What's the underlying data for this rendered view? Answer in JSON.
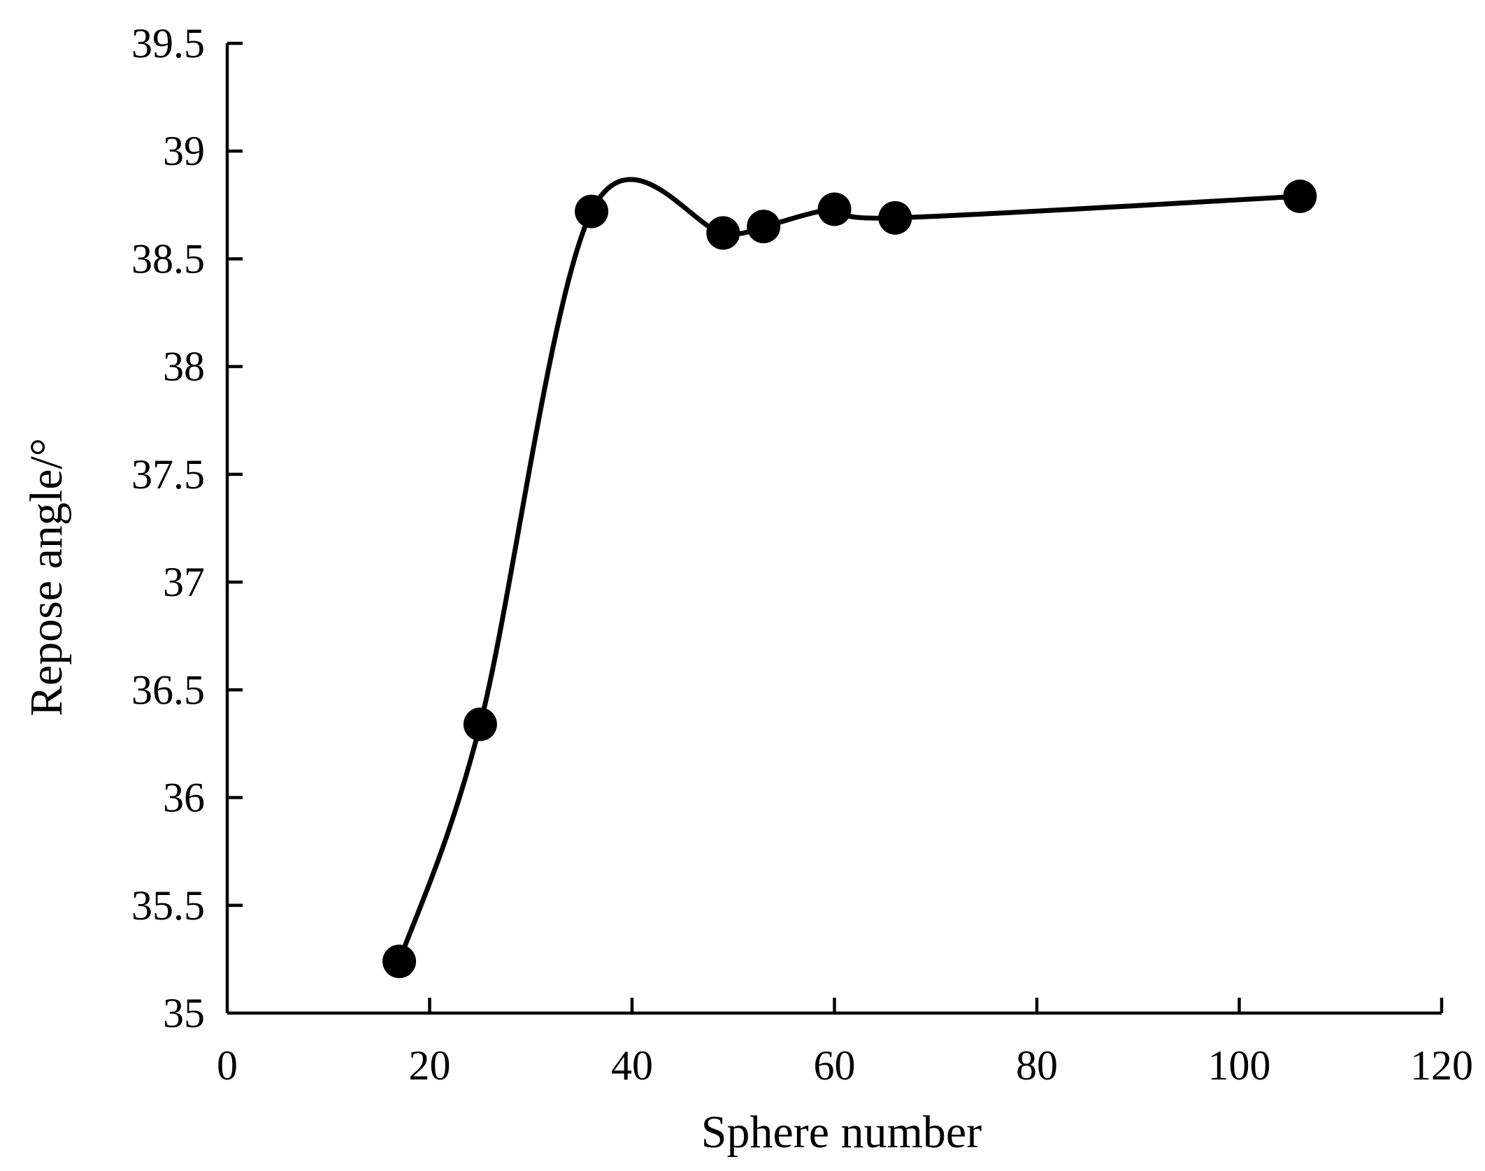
{
  "chart_data": {
    "type": "line",
    "smooth": true,
    "xlabel": "Sphere number",
    "ylabel": "Repose angle/°",
    "xlim": [
      0,
      120
    ],
    "ylim": [
      35,
      39.5
    ],
    "x_ticks": [
      "0",
      "20",
      "40",
      "60",
      "80",
      "100",
      "120"
    ],
    "y_ticks": [
      "35",
      "35.5",
      "36",
      "36.5",
      "37",
      "37.5",
      "38",
      "38.5",
      "39",
      "39.5"
    ],
    "grid": false,
    "series": [
      {
        "marker": "filled-circle",
        "color": "#000000",
        "x": [
          17,
          25,
          36,
          49,
          53,
          60,
          66,
          106
        ],
        "y": [
          35.24,
          36.34,
          38.72,
          38.62,
          38.65,
          38.73,
          38.69,
          38.79
        ]
      }
    ]
  }
}
